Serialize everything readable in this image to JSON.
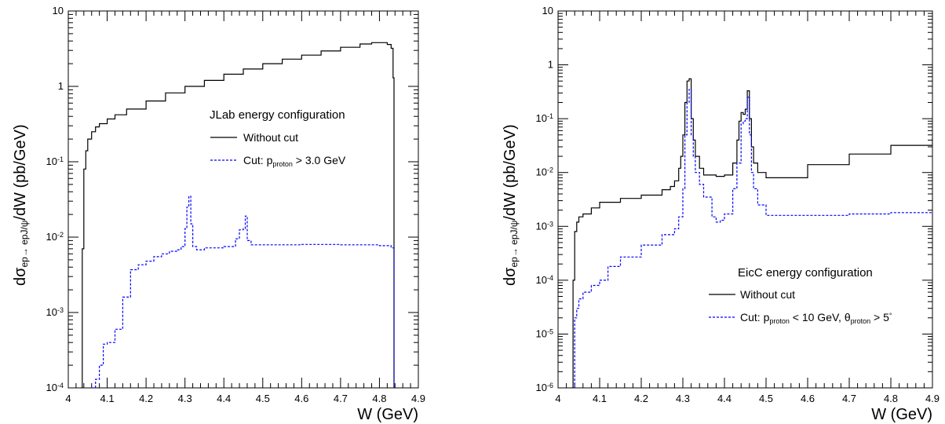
{
  "chart_data": [
    {
      "type": "line",
      "step": true,
      "log_y": true,
      "xlim": [
        4.0,
        4.9
      ],
      "ylim": [
        0.0001,
        10
      ],
      "xlabel": "W (GeV)",
      "ylabel_parts": {
        "pre": "dσ",
        "sub": "ep→ epJ/ψ",
        "post": "/dW (pb/GeV)"
      },
      "x_ticks": [
        "4",
        "4.1",
        "4.2",
        "4.3",
        "4.4",
        "4.5",
        "4.6",
        "4.7",
        "4.8",
        "4.9"
      ],
      "y_ticks": [
        {
          "base": "10",
          "exp": "-4"
        },
        {
          "base": "10",
          "exp": "-3"
        },
        {
          "base": "10",
          "exp": "-2"
        },
        {
          "base": "10",
          "exp": "-1"
        },
        {
          "base": "1",
          "exp": ""
        },
        {
          "base": "10",
          "exp": ""
        }
      ],
      "legend": {
        "placement": "center-right",
        "title": "JLab energy configuration",
        "entries": [
          {
            "parts": [
              {
                "t": "Without cut"
              }
            ]
          },
          {
            "parts": [
              {
                "t": "Cut: p"
              },
              {
                "t": "proton",
                "sub": true
              },
              {
                "t": " > 3.0 GeV"
              }
            ]
          }
        ]
      },
      "series": [
        {
          "name": "Without cut",
          "color": "#000000",
          "dash": false,
          "x": [
            4.032,
            4.036,
            4.04,
            4.045,
            4.05,
            4.06,
            4.07,
            4.08,
            4.1,
            4.12,
            4.15,
            4.2,
            4.25,
            4.3,
            4.35,
            4.4,
            4.45,
            4.5,
            4.55,
            4.6,
            4.65,
            4.7,
            4.75,
            4.78,
            4.8,
            4.82,
            4.83,
            4.835,
            4.8375
          ],
          "y": [
            0.0001,
            0.007,
            0.08,
            0.14,
            0.2,
            0.25,
            0.29,
            0.32,
            0.37,
            0.42,
            0.5,
            0.64,
            0.82,
            1.0,
            1.2,
            1.45,
            1.7,
            2.0,
            2.3,
            2.6,
            2.95,
            3.3,
            3.65,
            3.8,
            3.8,
            3.6,
            3.2,
            1.3,
            0.0001
          ]
        },
        {
          "name": "Cut: p_proton > 3.0 GeV",
          "color": "#0000ff",
          "dash": true,
          "x": [
            4.06,
            4.07,
            4.08,
            4.09,
            4.1,
            4.12,
            4.14,
            4.16,
            4.18,
            4.2,
            4.22,
            4.24,
            4.26,
            4.28,
            4.29,
            4.3,
            4.305,
            4.31,
            4.315,
            4.32,
            4.33,
            4.35,
            4.4,
            4.43,
            4.44,
            4.45,
            4.455,
            4.46,
            4.47,
            4.5,
            4.6,
            4.7,
            4.8,
            4.83,
            4.8375
          ],
          "y": [
            0.0001,
            0.00013,
            0.0002,
            0.00038,
            0.0004,
            0.0006,
            0.0016,
            0.0037,
            0.0043,
            0.0048,
            0.0055,
            0.006,
            0.0065,
            0.0068,
            0.0075,
            0.013,
            0.025,
            0.035,
            0.015,
            0.0075,
            0.0068,
            0.0072,
            0.0075,
            0.0095,
            0.0125,
            0.013,
            0.019,
            0.009,
            0.0079,
            0.0079,
            0.008,
            0.0079,
            0.0077,
            0.0072,
            0.0001
          ]
        }
      ]
    },
    {
      "type": "line",
      "step": true,
      "log_y": true,
      "xlim": [
        4.0,
        4.9
      ],
      "ylim": [
        1e-06,
        10
      ],
      "xlabel": "W (GeV)",
      "ylabel_parts": {
        "pre": "dσ",
        "sub": "ep→ epJ/ψ",
        "post": "/dW (pb/GeV)"
      },
      "x_ticks": [
        "4",
        "4.1",
        "4.2",
        "4.3",
        "4.4",
        "4.5",
        "4.6",
        "4.7",
        "4.8",
        "4.9"
      ],
      "y_ticks": [
        {
          "base": "10",
          "exp": "-6"
        },
        {
          "base": "10",
          "exp": "-5"
        },
        {
          "base": "10",
          "exp": "-4"
        },
        {
          "base": "10",
          "exp": "-3"
        },
        {
          "base": "10",
          "exp": "-2"
        },
        {
          "base": "10",
          "exp": "-1"
        },
        {
          "base": "1",
          "exp": ""
        },
        {
          "base": "10",
          "exp": ""
        }
      ],
      "legend": {
        "placement": "bottom-right",
        "title": "EicC energy configuration",
        "entries": [
          {
            "parts": [
              {
                "t": "Without cut"
              }
            ]
          },
          {
            "parts": [
              {
                "t": "Cut: p"
              },
              {
                "t": "proton",
                "sub": true
              },
              {
                "t": " < 10 GeV, θ"
              },
              {
                "t": "proton",
                "sub": true
              },
              {
                "t": " > 5"
              },
              {
                "t": "°",
                "sup": true
              }
            ]
          }
        ]
      },
      "series": [
        {
          "name": "Without cut",
          "color": "#000000",
          "dash": false,
          "x": [
            4.032,
            4.036,
            4.04,
            4.045,
            4.05,
            4.06,
            4.08,
            4.1,
            4.15,
            4.2,
            4.25,
            4.27,
            4.28,
            4.29,
            4.295,
            4.3,
            4.305,
            4.31,
            4.315,
            4.32,
            4.325,
            4.33,
            4.34,
            4.35,
            4.38,
            4.4,
            4.42,
            4.43,
            4.435,
            4.44,
            4.445,
            4.45,
            4.455,
            4.46,
            4.465,
            4.47,
            4.48,
            4.5,
            4.6,
            4.7,
            4.8,
            4.9
          ],
          "y": [
            1e-06,
            0.0001,
            0.0008,
            0.0012,
            0.0015,
            0.0017,
            0.0022,
            0.0028,
            0.0033,
            0.0038,
            0.0048,
            0.0055,
            0.007,
            0.012,
            0.02,
            0.05,
            0.2,
            0.5,
            0.55,
            0.1,
            0.04,
            0.02,
            0.012,
            0.009,
            0.0085,
            0.009,
            0.015,
            0.04,
            0.09,
            0.13,
            0.12,
            0.15,
            0.33,
            0.1,
            0.03,
            0.015,
            0.01,
            0.008,
            0.014,
            0.022,
            0.032,
            0.045
          ]
        },
        {
          "name": "Cut: p_proton < 10 GeV, θ_proton > 5°",
          "color": "#0000ff",
          "dash": true,
          "x": [
            4.038,
            4.04,
            4.045,
            4.05,
            4.06,
            4.08,
            4.1,
            4.12,
            4.15,
            4.2,
            4.25,
            4.28,
            4.29,
            4.3,
            4.305,
            4.31,
            4.315,
            4.32,
            4.325,
            4.33,
            4.34,
            4.35,
            4.37,
            4.38,
            4.39,
            4.4,
            4.42,
            4.43,
            4.44,
            4.445,
            4.45,
            4.455,
            4.46,
            4.465,
            4.47,
            4.48,
            4.5,
            4.6,
            4.7,
            4.8,
            4.9
          ],
          "y": [
            1e-06,
            2e-05,
            3e-05,
            4.5e-05,
            6e-05,
            8e-05,
            0.0001,
            0.00018,
            0.00027,
            0.00045,
            0.0007,
            0.0009,
            0.0015,
            0.005,
            0.05,
            0.2,
            0.35,
            0.05,
            0.02,
            0.01,
            0.006,
            0.0035,
            0.0015,
            0.0012,
            0.0013,
            0.0017,
            0.005,
            0.015,
            0.08,
            0.09,
            0.1,
            0.25,
            0.05,
            0.01,
            0.005,
            0.0025,
            0.0016,
            0.0016,
            0.0017,
            0.0018,
            0.0017
          ]
        }
      ]
    }
  ]
}
